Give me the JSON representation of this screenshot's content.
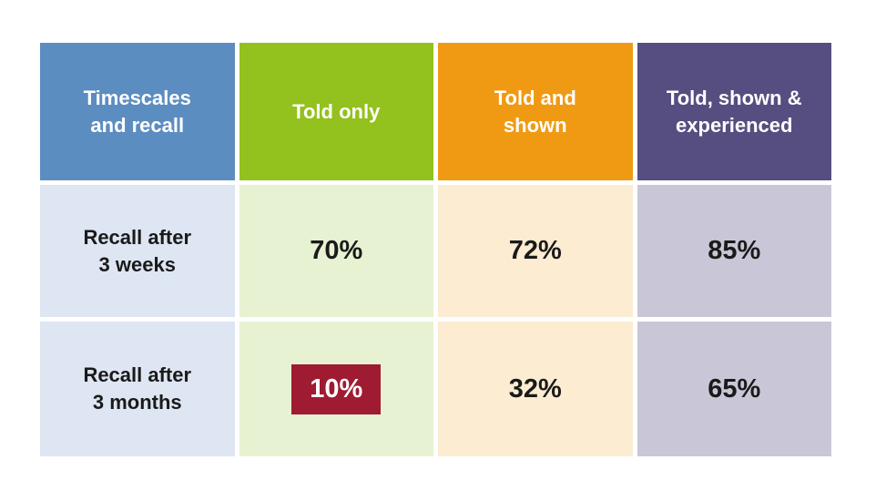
{
  "colors": {
    "header_blue": "#5c8dc1",
    "header_green": "#93c11d",
    "header_orange": "#f09a14",
    "header_purple": "#564e80",
    "cell_light_blue": "#dde6f2",
    "cell_light_green": "#e7f2d3",
    "cell_cream": "#fbecd2",
    "cell_light_purple": "#c9c7d7",
    "highlight_red": "#9e1b32",
    "header_text": "#ffffff",
    "body_text": "#1a1a1a",
    "page_background": "#ffffff"
  },
  "table": {
    "headers": [
      {
        "label": "Timescales\nand recall"
      },
      {
        "label": "Told only"
      },
      {
        "label": "Told and\nshown"
      },
      {
        "label": "Told, shown &\nexperienced"
      }
    ],
    "rows": [
      {
        "label": "Recall after\n3 weeks",
        "cells": [
          {
            "value": "70%",
            "highlighted": false
          },
          {
            "value": "72%",
            "highlighted": false
          },
          {
            "value": "85%",
            "highlighted": false
          }
        ]
      },
      {
        "label": "Recall after\n3 months",
        "cells": [
          {
            "value": "10%",
            "highlighted": true
          },
          {
            "value": "32%",
            "highlighted": false
          },
          {
            "value": "65%",
            "highlighted": false
          }
        ]
      }
    ]
  },
  "chart_data": {
    "type": "table",
    "title": "",
    "columns": [
      "Timescales and recall",
      "Told only",
      "Told and shown",
      "Told, shown & experienced"
    ],
    "rows": [
      {
        "label": "Recall after 3 weeks",
        "values": [
          70,
          72,
          85
        ],
        "values_text": [
          "70%",
          "72%",
          "85%"
        ]
      },
      {
        "label": "Recall after 3 months",
        "values": [
          10,
          32,
          65
        ],
        "values_text": [
          "10%",
          "32%",
          "65%"
        ]
      }
    ],
    "highlighted_cell": {
      "row": "Recall after 3 months",
      "column": "Told only",
      "value": "10%",
      "highlight_color": "#9e1b32"
    },
    "legend_position": "none",
    "grid": false
  }
}
